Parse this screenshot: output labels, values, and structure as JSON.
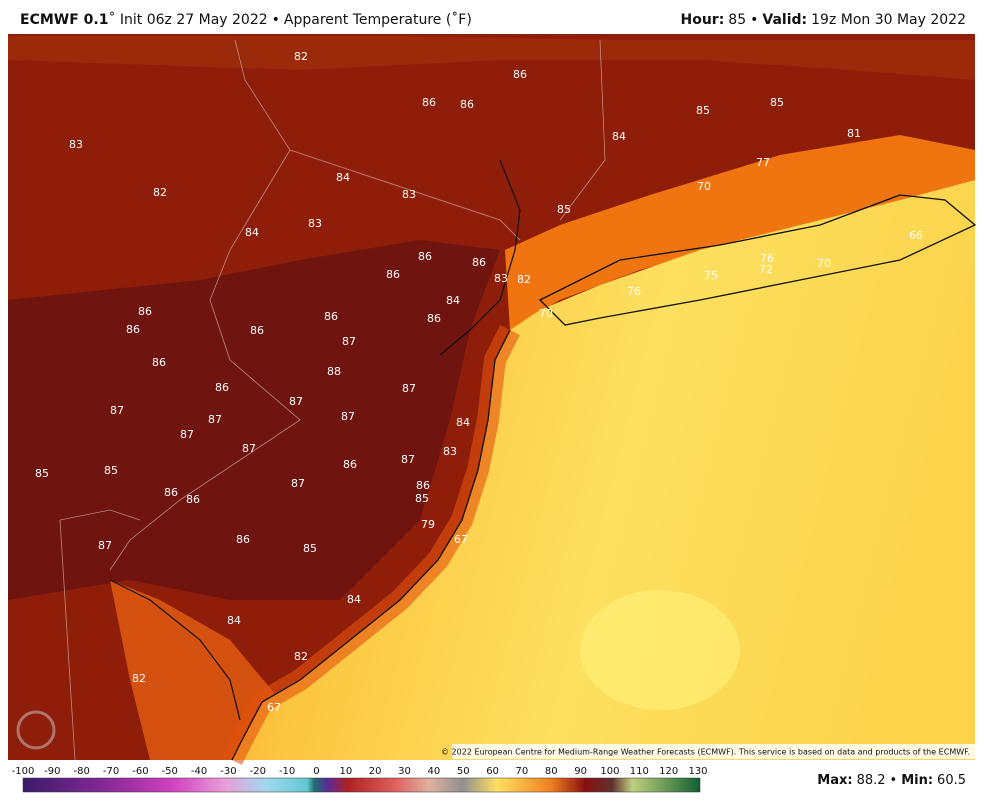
{
  "header": {
    "model": "ECMWF 0.1",
    "run": "˚ Init 06z 27 May 2022",
    "separator": "•",
    "field": "Apparent Temperature (˚F)",
    "hour_label": "Hour:",
    "hour": 85,
    "valid_label": "Valid:",
    "valid": "19z Mon 30 May 2022"
  },
  "map_labels": [
    82,
    86,
    86,
    86,
    85,
    85,
    84,
    81,
    83,
    77,
    70,
    84,
    82,
    83,
    85,
    83,
    84,
    66,
    86,
    86,
    76,
    86,
    72,
    75,
    70,
    83,
    82,
    84,
    76,
    70,
    86,
    86,
    86,
    86,
    86,
    87,
    86,
    88,
    87,
    86,
    87,
    87,
    87,
    87,
    84,
    87,
    87,
    83,
    86,
    87,
    85,
    85,
    86,
    86,
    87,
    86,
    85,
    79,
    67,
    87,
    86,
    85,
    84,
    84,
    82,
    82,
    67
  ],
  "copyright": "© 2022 European Centre for Medium-Range Weather Forecasts (ECMWF). This service is based on data and products of the ECMWF.",
  "colorbar": {
    "ticks": [
      -100,
      -90,
      -80,
      -70,
      -60,
      -50,
      -40,
      -30,
      -20,
      -10,
      0,
      10,
      20,
      30,
      40,
      50,
      60,
      70,
      80,
      90,
      100,
      110,
      120,
      130
    ]
  },
  "footer": {
    "max_label": "Max:",
    "max": 88.2,
    "separator": "•",
    "min_label": "Min:",
    "min": 60.5
  }
}
